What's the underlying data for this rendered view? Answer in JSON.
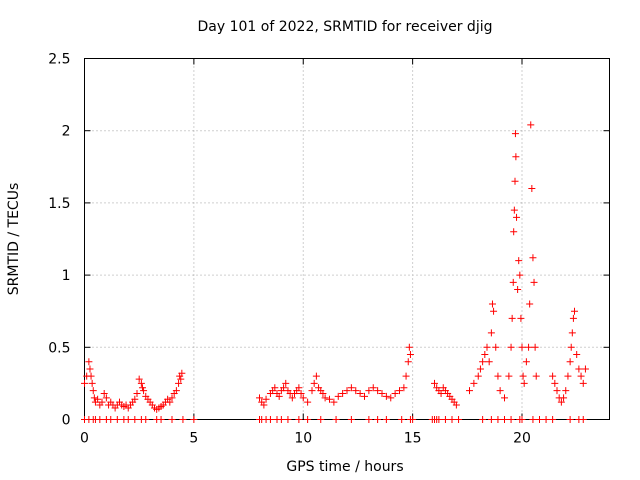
{
  "chart_data": {
    "type": "scatter",
    "title": "Day 101 of 2022, SRMTID for receiver djig",
    "xlabel": "GPS time / hours",
    "ylabel": "SRMTID / TECUs",
    "xlim": [
      0,
      24
    ],
    "ylim": [
      0,
      2.5
    ],
    "x_ticks": [
      0,
      5,
      10,
      15,
      20
    ],
    "x_tick_labels": [
      "0",
      "5",
      "10",
      "15",
      "20"
    ],
    "y_ticks": [
      0,
      0.5,
      1,
      1.5,
      2,
      2.5
    ],
    "y_tick_labels": [
      "0",
      "0.5",
      "1",
      "1.5",
      "2",
      "2.5"
    ],
    "grid": true,
    "marker": "+",
    "color": "#ff0000",
    "series": [
      {
        "name": "SRMTID",
        "x": [
          0.0,
          0.1,
          0.2,
          0.25,
          0.3,
          0.35,
          0.4,
          0.45,
          0.5,
          0.6,
          0.7,
          0.8,
          0.9,
          1.0,
          1.1,
          1.2,
          1.3,
          1.4,
          1.5,
          1.6,
          1.7,
          1.8,
          1.9,
          2.0,
          2.1,
          2.2,
          2.3,
          2.4,
          2.5,
          2.6,
          2.65,
          2.7,
          2.8,
          2.9,
          3.0,
          3.1,
          3.2,
          3.3,
          3.4,
          3.5,
          3.6,
          3.7,
          3.8,
          3.9,
          4.0,
          4.1,
          4.2,
          4.3,
          4.35,
          4.4,
          4.45,
          8.0,
          8.1,
          8.2,
          8.3,
          8.5,
          8.6,
          8.7,
          8.8,
          8.9,
          9.0,
          9.1,
          9.2,
          9.3,
          9.4,
          9.5,
          9.6,
          9.7,
          9.8,
          9.9,
          10.0,
          10.2,
          10.4,
          10.5,
          10.6,
          10.7,
          10.8,
          10.9,
          11.0,
          11.2,
          11.4,
          11.6,
          11.8,
          12.0,
          12.2,
          12.4,
          12.6,
          12.8,
          13.0,
          13.2,
          13.4,
          13.6,
          13.8,
          14.0,
          14.2,
          14.4,
          14.6,
          14.7,
          14.8,
          14.85,
          14.9,
          16.0,
          16.1,
          16.2,
          16.3,
          16.4,
          16.5,
          16.6,
          16.7,
          16.8,
          16.9,
          17.0,
          17.6,
          17.8,
          18.0,
          18.1,
          18.2,
          18.3,
          18.4,
          18.5,
          18.6,
          18.65,
          18.7,
          18.8,
          18.9,
          19.0,
          19.2,
          19.4,
          19.5,
          19.55,
          19.6,
          19.62,
          19.65,
          19.68,
          19.7,
          19.72,
          19.75,
          19.8,
          19.85,
          19.9,
          19.95,
          20.0,
          20.05,
          20.1,
          20.2,
          20.3,
          20.35,
          20.4,
          20.45,
          20.5,
          20.55,
          20.6,
          20.65,
          21.4,
          21.5,
          21.6,
          21.7,
          21.8,
          21.9,
          22.0,
          22.1,
          22.2,
          22.25,
          22.3,
          22.35,
          22.4,
          22.5,
          22.6,
          22.7,
          22.8,
          22.9
        ],
        "y": [
          0.25,
          0.3,
          0.4,
          0.35,
          0.3,
          0.25,
          0.2,
          0.15,
          0.12,
          0.14,
          0.1,
          0.12,
          0.18,
          0.15,
          0.1,
          0.12,
          0.1,
          0.08,
          0.1,
          0.12,
          0.1,
          0.09,
          0.1,
          0.08,
          0.1,
          0.12,
          0.14,
          0.18,
          0.28,
          0.25,
          0.22,
          0.2,
          0.16,
          0.14,
          0.12,
          0.1,
          0.08,
          0.07,
          0.08,
          0.09,
          0.1,
          0.12,
          0.14,
          0.12,
          0.15,
          0.18,
          0.2,
          0.25,
          0.3,
          0.28,
          0.32,
          0.15,
          0.12,
          0.1,
          0.14,
          0.18,
          0.2,
          0.22,
          0.18,
          0.16,
          0.2,
          0.22,
          0.25,
          0.2,
          0.18,
          0.15,
          0.18,
          0.2,
          0.22,
          0.18,
          0.15,
          0.12,
          0.2,
          0.25,
          0.3,
          0.22,
          0.2,
          0.18,
          0.15,
          0.14,
          0.12,
          0.16,
          0.18,
          0.2,
          0.22,
          0.2,
          0.18,
          0.16,
          0.2,
          0.22,
          0.2,
          0.18,
          0.16,
          0.15,
          0.18,
          0.2,
          0.22,
          0.3,
          0.4,
          0.5,
          0.45,
          0.25,
          0.22,
          0.2,
          0.18,
          0.22,
          0.2,
          0.18,
          0.16,
          0.14,
          0.12,
          0.1,
          0.2,
          0.25,
          0.3,
          0.35,
          0.4,
          0.45,
          0.5,
          0.4,
          0.6,
          0.8,
          0.75,
          0.5,
          0.3,
          0.2,
          0.15,
          0.3,
          0.5,
          0.7,
          0.95,
          1.3,
          1.45,
          1.65,
          1.98,
          1.82,
          1.4,
          0.9,
          1.1,
          1.0,
          0.7,
          0.5,
          0.3,
          0.25,
          0.4,
          0.5,
          0.8,
          2.04,
          1.6,
          1.12,
          0.95,
          0.5,
          0.3,
          0.3,
          0.25,
          0.2,
          0.15,
          0.12,
          0.15,
          0.2,
          0.3,
          0.4,
          0.5,
          0.6,
          0.7,
          0.75,
          0.45,
          0.35,
          0.3,
          0.25,
          0.35
        ],
        "zero_points_x": [
          0.0,
          0.2,
          0.4,
          0.5,
          0.7,
          1.0,
          1.2,
          1.5,
          1.8,
          2.0,
          2.3,
          2.6,
          2.8,
          3.3,
          3.5,
          4.0,
          4.5,
          5.0,
          8.0,
          8.1,
          8.3,
          8.5,
          8.8,
          9.0,
          9.3,
          9.8,
          10.2,
          10.8,
          11.5,
          12.2,
          13.0,
          13.4,
          13.8,
          14.5,
          14.9,
          15.0,
          15.9,
          16.0,
          16.1,
          16.2,
          16.5,
          16.8,
          17.1,
          18.2,
          18.6,
          18.9,
          19.2,
          19.5,
          19.9,
          20.0,
          20.5,
          20.8,
          21.1,
          21.4,
          22.2,
          22.6,
          22.8
        ]
      }
    ]
  }
}
